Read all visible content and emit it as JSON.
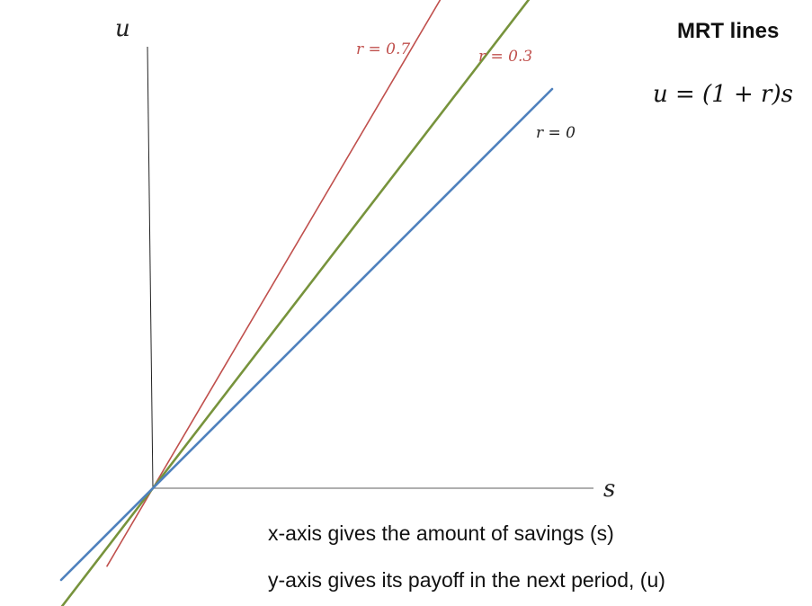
{
  "chart_data": {
    "type": "line",
    "title": "MRT lines",
    "equation": "u = (1 + r)s",
    "xlabel": "s",
    "ylabel": "u",
    "grid": false,
    "legend": "none",
    "series": [
      {
        "name": "r = 0.7",
        "label": "r = 0.7",
        "r": 0.7,
        "color": "#c0504d",
        "x": [
          -0.085,
          0.6
        ],
        "y": [
          -0.1445,
          1.02
        ]
      },
      {
        "name": "r = 0.3",
        "label": "r = 0.3",
        "r": 0.3,
        "color": "#77933c",
        "x": [
          -0.18,
          0.7
        ],
        "y": [
          -0.234,
          0.91
        ]
      },
      {
        "name": "r = 0",
        "label": "r = 0",
        "r": 0,
        "color": "#4f81bd",
        "x": [
          -0.17,
          0.74
        ],
        "y": [
          -0.17,
          0.74
        ]
      }
    ],
    "notes": [
      "x-axis gives the amount of savings (s)",
      "y-axis gives its payoff in the next period, (u)"
    ]
  }
}
